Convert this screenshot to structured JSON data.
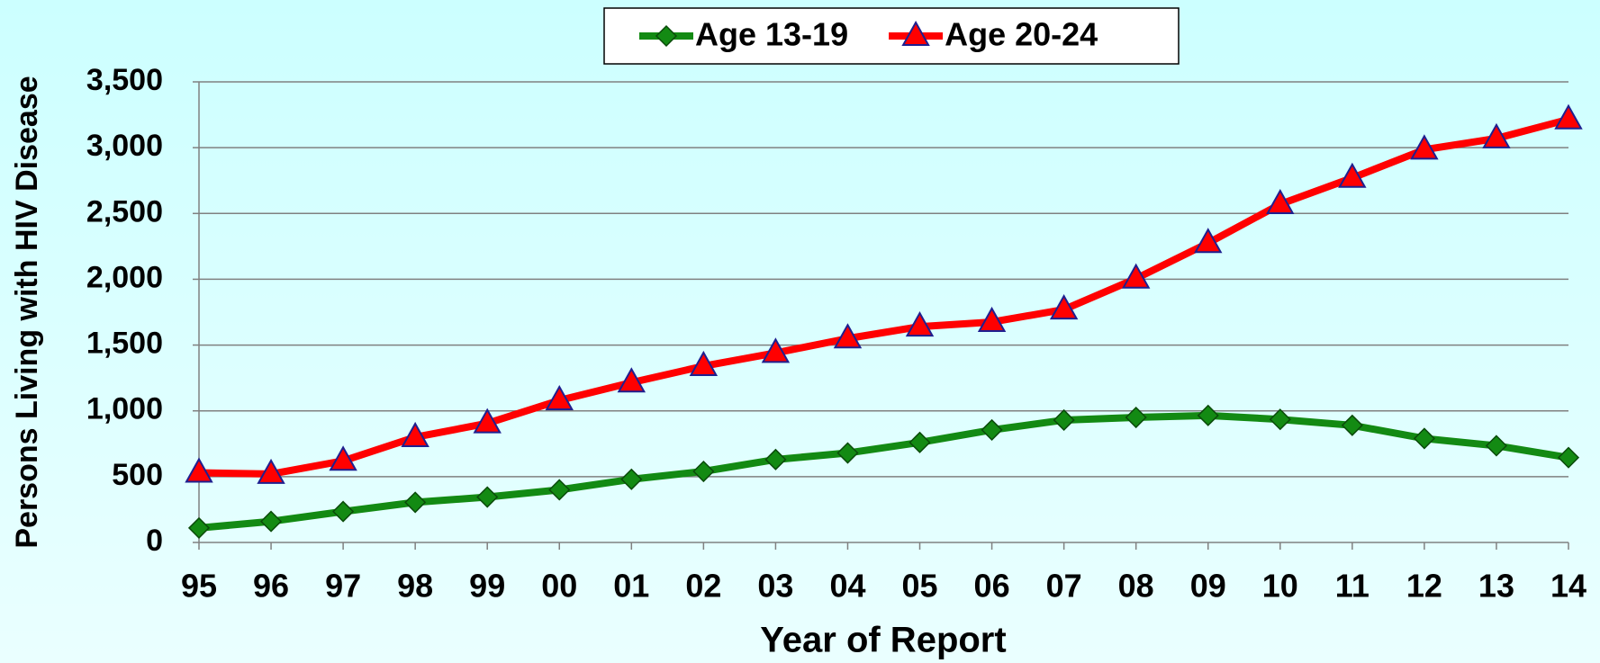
{
  "chart_data": {
    "type": "line",
    "xlabel": "Year of Report",
    "ylabel": "Persons Living with HIV Disease",
    "categories": [
      "95",
      "96",
      "97",
      "98",
      "99",
      "00",
      "01",
      "02",
      "03",
      "04",
      "05",
      "06",
      "07",
      "08",
      "09",
      "10",
      "11",
      "12",
      "13",
      "14"
    ],
    "series": [
      {
        "name": "Age 13-19",
        "color": "#138a13",
        "marker": "diamond",
        "values": [
          110,
          160,
          235,
          305,
          345,
          400,
          480,
          540,
          630,
          680,
          760,
          855,
          930,
          950,
          965,
          935,
          890,
          790,
          735,
          645
        ]
      },
      {
        "name": "Age 20-24",
        "color": "#ff0000",
        "marker": "triangle",
        "values": [
          530,
          520,
          620,
          800,
          905,
          1080,
          1215,
          1340,
          1440,
          1550,
          1640,
          1675,
          1770,
          2005,
          2275,
          2570,
          2770,
          2985,
          3070,
          3215
        ]
      }
    ],
    "ylim": [
      0,
      3500
    ],
    "yticks": [
      0,
      500,
      {
        "value": 1000,
        "label": "1,000"
      },
      {
        "value": 1500,
        "label": "1,500"
      },
      {
        "value": 2000,
        "label": "2,000"
      },
      {
        "value": 2500,
        "label": "2,500"
      },
      {
        "value": 3000,
        "label": "3,000"
      },
      {
        "value": 3500,
        "label": "3,500"
      }
    ],
    "grid": true,
    "legend": "top"
  }
}
